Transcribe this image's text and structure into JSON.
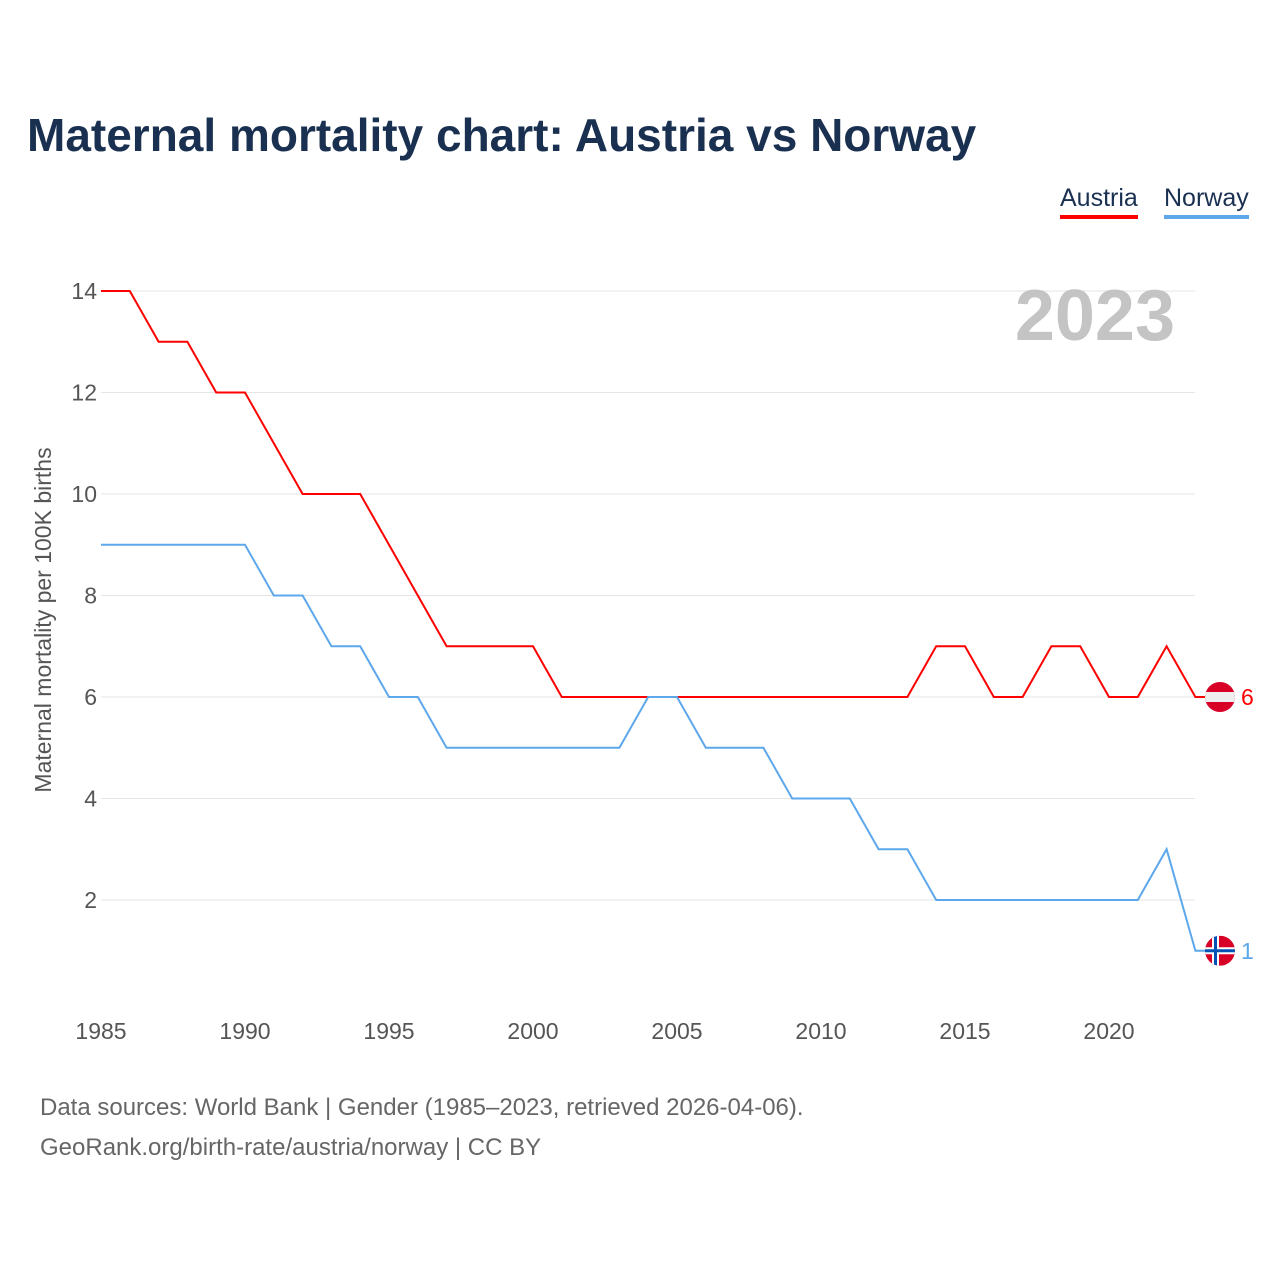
{
  "title": "Maternal mortality chart: Austria vs Norway",
  "year_label": "2023",
  "source_line1": "Data sources: World Bank | Gender (1985–2023, retrieved 2026-04-06).",
  "source_line2": "GeoRank.org/birth-rate/austria/norway | CC BY",
  "chart_data": {
    "type": "line",
    "title": "Maternal mortality chart: Austria vs Norway",
    "xlabel": "",
    "ylabel": "Maternal mortality per 100K births",
    "xlim": [
      1985,
      2023
    ],
    "ylim": [
      0,
      14
    ],
    "x_ticks": [
      1985,
      1990,
      1995,
      2000,
      2005,
      2010,
      2015,
      2020
    ],
    "y_ticks": [
      2,
      4,
      6,
      8,
      10,
      12,
      14
    ],
    "grid": true,
    "legend_position": "top-right",
    "x": [
      1985,
      1986,
      1987,
      1988,
      1989,
      1990,
      1991,
      1992,
      1993,
      1994,
      1995,
      1996,
      1997,
      1998,
      1999,
      2000,
      2001,
      2002,
      2003,
      2004,
      2005,
      2006,
      2007,
      2008,
      2009,
      2010,
      2011,
      2012,
      2013,
      2014,
      2015,
      2016,
      2017,
      2018,
      2019,
      2020,
      2021,
      2022,
      2023
    ],
    "series": [
      {
        "name": "Austria",
        "color": "#ff0000",
        "end_label": "6",
        "values": [
          14,
          14,
          13,
          13,
          12,
          12,
          11,
          10,
          10,
          10,
          9,
          8,
          7,
          7,
          7,
          7,
          6,
          6,
          6,
          6,
          6,
          6,
          6,
          6,
          6,
          6,
          6,
          6,
          6,
          7,
          7,
          6,
          6,
          7,
          7,
          6,
          6,
          7,
          6
        ]
      },
      {
        "name": "Norway",
        "color": "#5da7eb",
        "end_label": "1",
        "values": [
          9,
          9,
          9,
          9,
          9,
          9,
          8,
          8,
          7,
          7,
          6,
          6,
          5,
          5,
          5,
          5,
          5,
          5,
          5,
          6,
          6,
          5,
          5,
          5,
          4,
          4,
          4,
          3,
          3,
          2,
          2,
          2,
          2,
          2,
          2,
          2,
          2,
          3,
          1
        ]
      }
    ]
  }
}
